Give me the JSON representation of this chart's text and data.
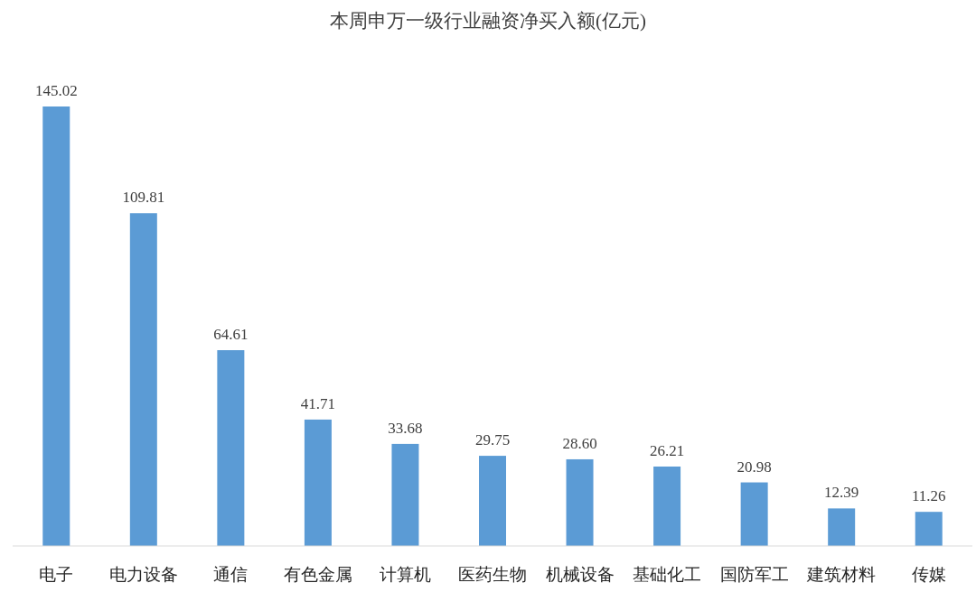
{
  "chart_data": {
    "type": "bar",
    "title": "本周申万一级行业融资净买入额(亿元)",
    "categories": [
      "电子",
      "电力设备",
      "通信",
      "有色金属",
      "计算机",
      "医药生物",
      "机械设备",
      "基础化工",
      "国防军工",
      "建筑材料",
      "传媒"
    ],
    "values": [
      145.02,
      109.81,
      64.61,
      41.71,
      33.68,
      29.75,
      28.6,
      26.21,
      20.98,
      12.39,
      11.26
    ],
    "value_labels": [
      "145.02",
      "109.81",
      "64.61",
      "41.71",
      "33.68",
      "29.75",
      "28.60",
      "26.21",
      "20.98",
      "12.39",
      "11.26"
    ],
    "color": "#5b9bd5"
  }
}
